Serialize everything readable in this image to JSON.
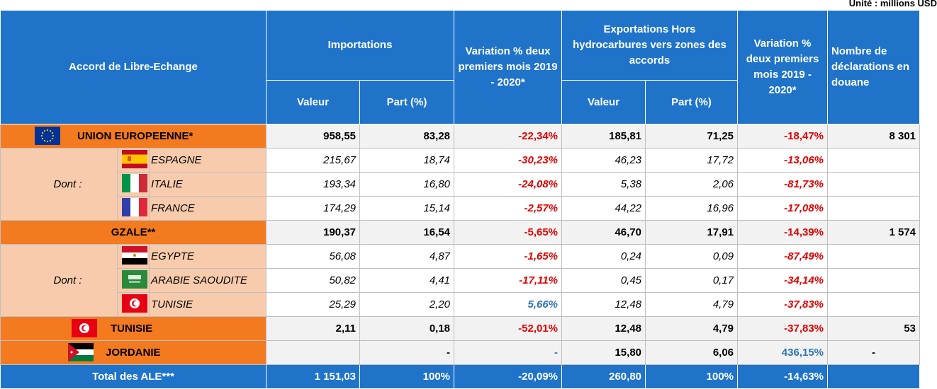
{
  "header": {
    "unit": "Unité : millions USD",
    "columns": [
      "Accord de Libre-Echange",
      "Importations",
      "Variation % deux premiers mois 2019 - 2020*",
      "Exportations Hors hydrocarbures vers zones des accords",
      "Variation % deux premiers mois 2019 - 2020*",
      "Nombre de déclarations en douane"
    ],
    "subcolumns": [
      "Valeur",
      "Part (%)",
      "Valeur",
      "Part (%)"
    ]
  },
  "blocs": [
    {
      "name": "UNION EUROPEENNE*",
      "cells": [
        "958,55",
        "83,28",
        "-22,34%",
        "185,81",
        "71,25",
        "-18,47%",
        "8 301"
      ],
      "dont": "Dont :",
      "members": [
        {
          "name": "ESPAGNE",
          "cells": [
            "215,67",
            "18,74",
            "-30,23%",
            "46,23",
            "17,72",
            "-13,06%",
            null
          ]
        },
        {
          "name": "ITALIE",
          "cells": [
            "193,34",
            "16,80",
            "-24,08%",
            "5,38",
            "2,06",
            "-81,73%",
            null
          ]
        },
        {
          "name": "FRANCE",
          "cells": [
            "174,29",
            "15,14",
            "-2,57%",
            "44,22",
            "16,96",
            "-17,08%",
            null
          ]
        }
      ]
    },
    {
      "name": "GZALE**",
      "cells": [
        "190,37",
        "16,54",
        "-5,65%",
        "46,70",
        "17,91",
        "-14,39%",
        "1 574"
      ],
      "dont": "Dont :",
      "members": [
        {
          "name": "EGYPTE",
          "cells": [
            "56,08",
            "4,87",
            "-1,65%",
            "0,24",
            "0,09",
            "-87,49%",
            null
          ]
        },
        {
          "name": "ARABIE SAOUDITE",
          "cells": [
            "50,82",
            "4,41",
            "-17,11%",
            "0,45",
            "0,17",
            "-34,14%",
            null
          ]
        },
        {
          "name": "TUNISIE",
          "cells": [
            "25,29",
            "2,20",
            "5,66%",
            "12,48",
            "4,79",
            "-37,83%",
            null
          ]
        }
      ]
    },
    {
      "name": "TUNISIE",
      "cells": [
        "2,11",
        "0,18",
        "-52,01%",
        "12,48",
        "4,79",
        "-37,83%",
        "53"
      ]
    },
    {
      "name": "JORDANIE",
      "cells": [
        null,
        "-",
        "-",
        "15,80",
        "6,06",
        "436,15%",
        "-"
      ]
    }
  ],
  "total": {
    "name": "Total des ALE***",
    "cells": [
      "1 151,03",
      "100%",
      "-20,09%",
      "260,80",
      "100%",
      "-14,63%",
      null
    ]
  }
}
